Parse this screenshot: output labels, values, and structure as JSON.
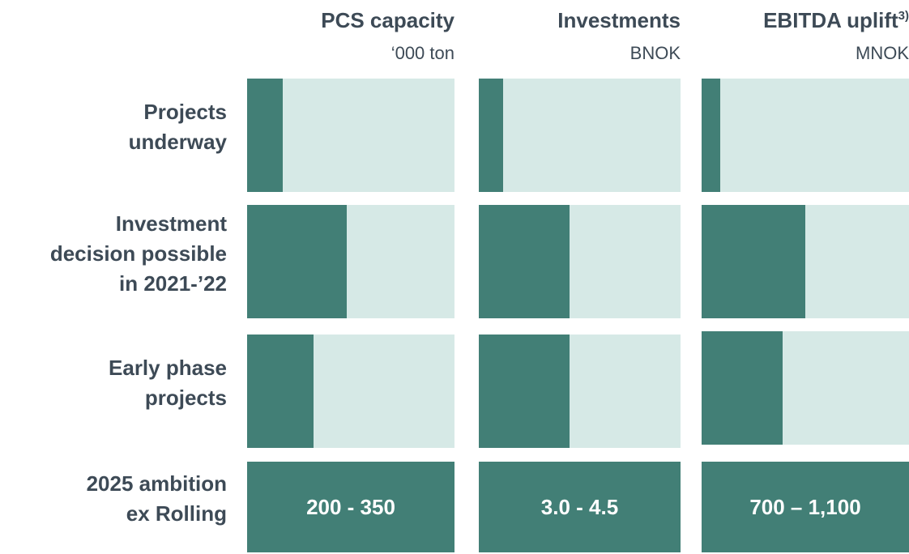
{
  "chart_data": {
    "type": "bar",
    "categories": [
      "Projects\nunderway",
      "Investment\ndecision possible\nin 2021-’22",
      "Early phase\nprojects"
    ],
    "total_category": "2025 ambition\nex Rolling",
    "xlim": [
      0,
      100
    ],
    "color": "#427f76",
    "track_color": "#d6e9e6",
    "series": [
      {
        "name": "PCS capacity",
        "unit": "‘000 ton",
        "values": [
          17,
          48,
          32
        ],
        "total_label": "200 - 350"
      },
      {
        "name": "Investments",
        "unit": "BNOK",
        "values": [
          12,
          45,
          45
        ],
        "total_label": "3.0 - 4.5"
      },
      {
        "name": "EBITDA uplift",
        "note": "3)",
        "unit": "MNOK",
        "values": [
          9,
          50,
          39
        ],
        "total_label": "700 – 1,100"
      }
    ]
  }
}
